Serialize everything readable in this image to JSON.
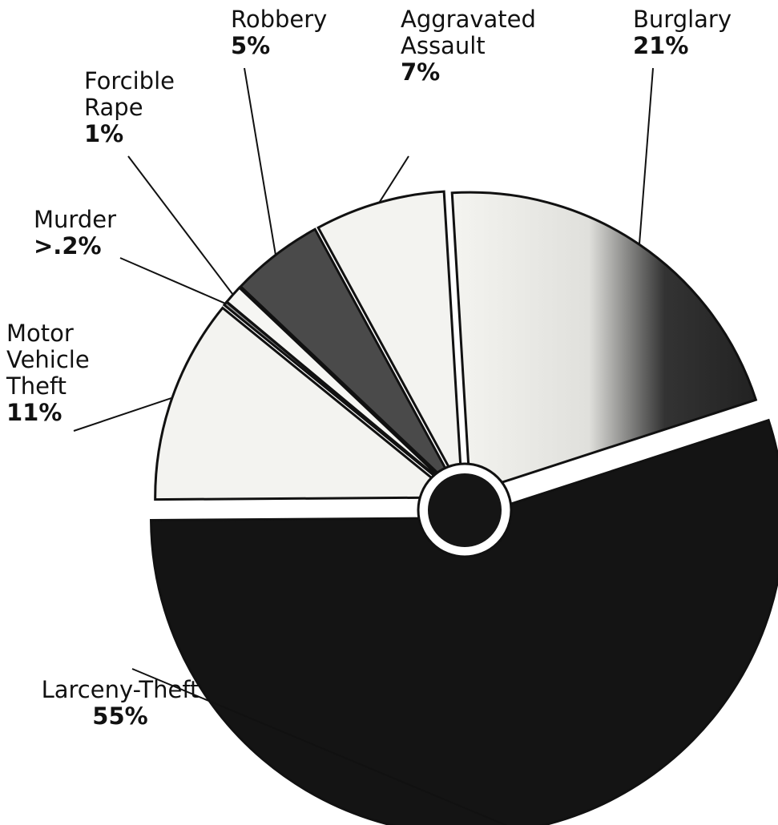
{
  "chart_data": {
    "type": "pie",
    "categories": [
      "Larceny-Theft",
      "Motor Vehicle Theft",
      "Murder",
      "Forcible Rape",
      "Robbery",
      "Aggravated Assault",
      "Burglary"
    ],
    "values": [
      55,
      11,
      0.2,
      1,
      5,
      7,
      21
    ],
    "value_labels": [
      "55%",
      "11%",
      ">.2%",
      "1%",
      "5%",
      "7%",
      "21%"
    ],
    "colors": [
      "#141414",
      "#f3f3f0",
      "#9a9a9a",
      "#f6f6f3",
      "#4a4a4a",
      "#f3f3f0",
      "#8a8a8a"
    ]
  }
}
